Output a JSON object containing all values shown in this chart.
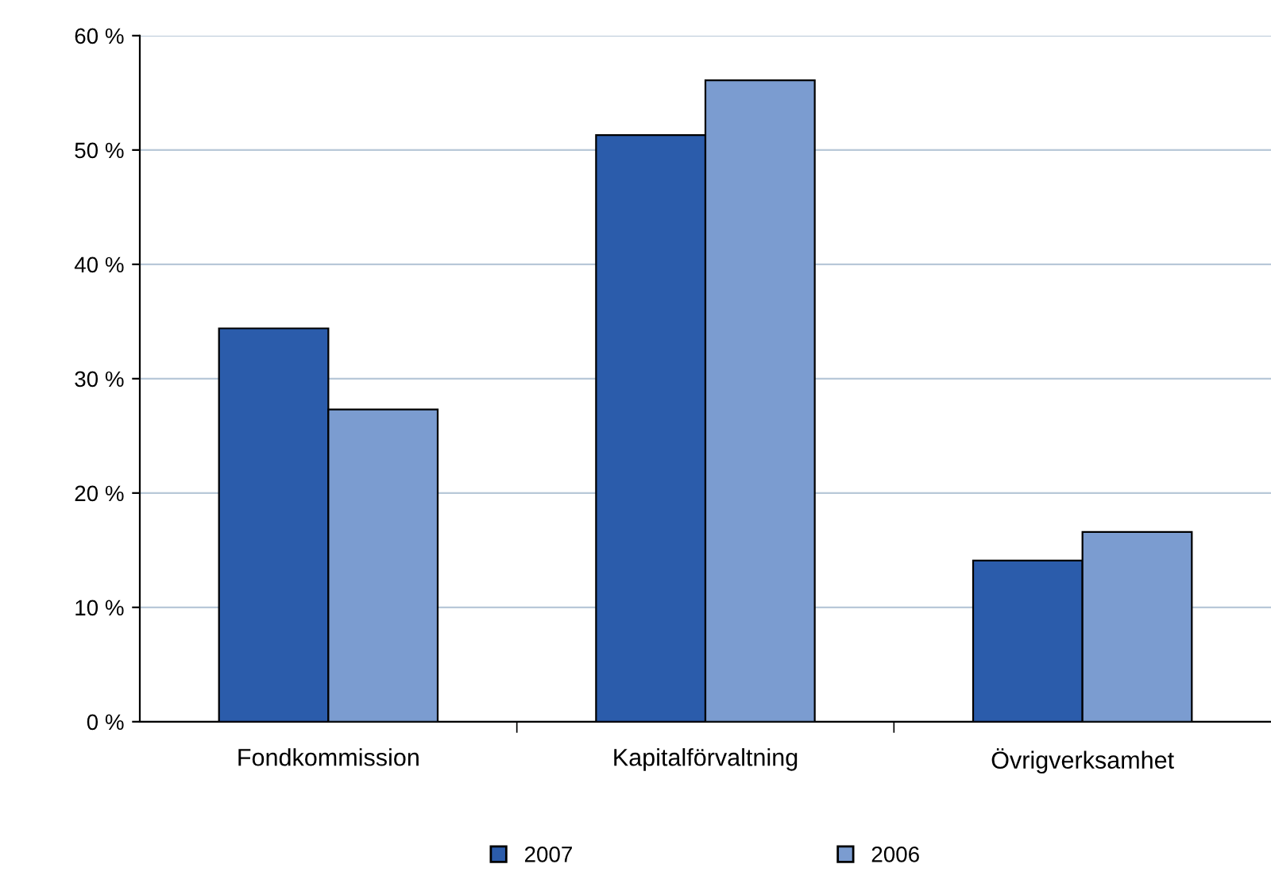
{
  "chart_data": {
    "type": "bar",
    "categories": [
      "Fondkommission",
      "Kapitalförvaltning",
      "Övrigverksamhet"
    ],
    "series": [
      {
        "name": "2007",
        "color": "#2b5cab",
        "values": [
          34.4,
          51.3,
          14.1
        ]
      },
      {
        "name": "2006",
        "color": "#7b9cd0",
        "values": [
          27.3,
          56.1,
          16.6
        ]
      }
    ],
    "ylim": [
      0,
      60
    ],
    "yticks": [
      {
        "value": 0,
        "label": "0 %"
      },
      {
        "value": 10,
        "label": "10 %"
      },
      {
        "value": 20,
        "label": "20 %"
      },
      {
        "value": 30,
        "label": "30 %"
      },
      {
        "value": 40,
        "label": "40 %"
      },
      {
        "value": 50,
        "label": "50 %"
      },
      {
        "value": 60,
        "label": "60 %"
      }
    ],
    "grid": "y",
    "legend": "bottom"
  }
}
